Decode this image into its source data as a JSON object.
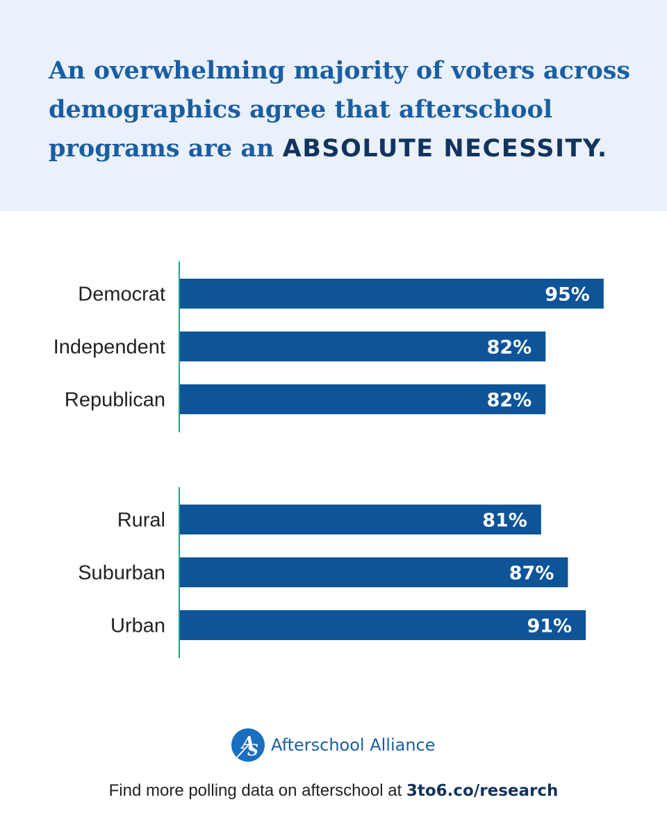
{
  "headline": {
    "text": "An overwhelming majority of voters across demographics agree that afterschool programs are an ",
    "emphasis": "ABSOLUTE NECESSITY."
  },
  "colors": {
    "bar": "#0d5498",
    "axis": "#2a9d8f",
    "header_bg": "#eaf1fa",
    "headline": "#1a5ea3",
    "emphasis": "#12335e"
  },
  "chart_data": [
    {
      "type": "bar",
      "orientation": "horizontal",
      "categories": [
        "Democrat",
        "Independent",
        "Republican"
      ],
      "values": [
        95,
        82,
        82
      ],
      "value_labels": [
        "95%",
        "82%",
        "82%"
      ],
      "xlim": [
        0,
        100
      ]
    },
    {
      "type": "bar",
      "orientation": "horizontal",
      "categories": [
        "Rural",
        "Suburban",
        "Urban"
      ],
      "values": [
        81,
        87,
        91
      ],
      "value_labels": [
        "81%",
        "87%",
        "91%"
      ],
      "xlim": [
        0,
        100
      ]
    }
  ],
  "footer": {
    "logo_icon": "afterschool-alliance-logo-icon",
    "logo_text": "Afterschool Alliance",
    "note_text": "Find more polling data on afterschool at ",
    "note_link": "3to6.co/research"
  }
}
